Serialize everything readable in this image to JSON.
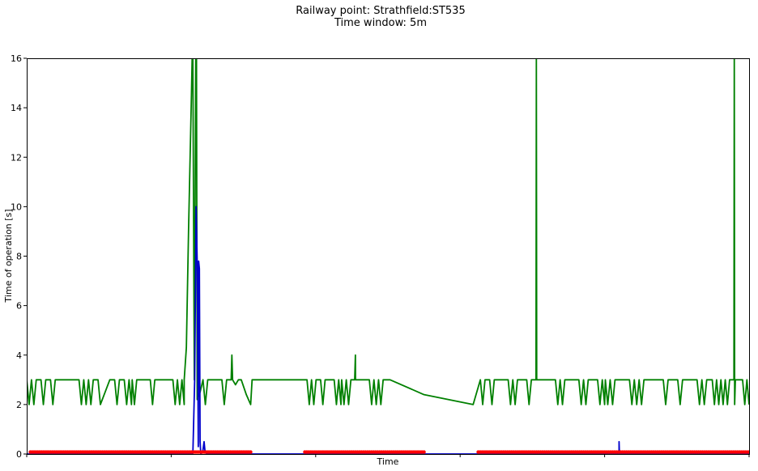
{
  "chart_data": {
    "type": "line",
    "title": "Railway point: Strathfield:ST535",
    "subtitle": "Time window: 5m",
    "xlabel": "Time",
    "ylabel": "Time of operation [s]",
    "ylim": [
      0,
      16
    ],
    "xlim": [
      0,
      100
    ],
    "y_ticks": [
      0,
      2,
      4,
      6,
      8,
      10,
      12,
      14,
      16
    ],
    "x_ticks": [
      0,
      20,
      40,
      60,
      80,
      100
    ],
    "grid": false,
    "legend": "none",
    "series": [
      {
        "color": "#008000",
        "style": "line",
        "segments": [
          {
            "x_start": 0.0,
            "x_end": 10.2,
            "min": 2,
            "max": 3,
            "count": 32
          },
          {
            "x_start": 11.5,
            "x_end": 14.5,
            "min": 2,
            "max": 3,
            "count": 10
          },
          {
            "x_start": 14.6,
            "x_end": 21.8,
            "min": 2,
            "max": 3,
            "count": 24
          },
          {
            "x_start": 24.4,
            "x_end": 28.0,
            "min": 2,
            "max": 3,
            "count": 12
          },
          {
            "x_start": 38.8,
            "x_end": 43.5,
            "min": 2,
            "max": 3,
            "count": 16
          },
          {
            "x_start": 43.6,
            "x_end": 50.3,
            "min": 2,
            "max": 3,
            "count": 22
          },
          {
            "x_start": 62.8,
            "x_end": 70.5,
            "min": 2,
            "max": 3,
            "count": 25
          },
          {
            "x_start": 70.6,
            "x_end": 80.0,
            "min": 2,
            "max": 3,
            "count": 30
          },
          {
            "x_start": 80.1,
            "x_end": 94.8,
            "min": 2,
            "max": 3,
            "count": 45
          },
          {
            "x_start": 94.9,
            "x_end": 100.0,
            "min": 2,
            "max": 3,
            "count": 18
          }
        ],
        "points": [
          [
            21.8,
            3
          ],
          [
            22.1,
            4.3
          ],
          [
            22.4,
            9
          ],
          [
            22.8,
            14.5
          ],
          [
            22.9,
            16
          ],
          [
            23.0,
            16
          ],
          [
            23.2,
            3
          ],
          [
            23.4,
            16
          ],
          [
            23.5,
            16
          ],
          [
            23.6,
            2.2
          ],
          [
            24.0,
            2.5
          ],
          [
            24.4,
            3
          ],
          [
            28.0,
            3
          ],
          [
            28.3,
            3
          ],
          [
            28.4,
            4
          ],
          [
            28.5,
            3
          ],
          [
            28.9,
            2.8
          ],
          [
            29.3,
            3
          ],
          [
            29.7,
            3
          ],
          [
            30.4,
            2.4
          ],
          [
            31.0,
            2
          ],
          [
            31.2,
            3
          ],
          [
            38.8,
            3
          ],
          [
            45.4,
            3
          ],
          [
            45.5,
            4
          ],
          [
            45.6,
            3
          ],
          [
            50.3,
            3
          ],
          [
            55.0,
            2.4
          ],
          [
            61.8,
            2
          ],
          [
            62.8,
            3
          ],
          [
            70.5,
            3
          ],
          [
            70.55,
            16
          ],
          [
            70.6,
            3
          ],
          [
            97.9,
            3
          ],
          [
            97.95,
            16
          ],
          [
            98.0,
            2
          ],
          [
            98.1,
            3
          ]
        ]
      },
      {
        "color": "#0000cc",
        "style": "line",
        "points": [
          [
            0,
            0
          ],
          [
            23.0,
            0
          ],
          [
            23.25,
            3
          ],
          [
            23.45,
            10
          ],
          [
            23.6,
            7.7
          ],
          [
            23.7,
            3
          ],
          [
            23.75,
            0.3
          ],
          [
            23.8,
            7.8
          ],
          [
            23.9,
            7.5
          ],
          [
            24.0,
            0.5
          ],
          [
            24.1,
            0
          ],
          [
            24.4,
            0.15
          ],
          [
            24.55,
            0.5
          ],
          [
            24.7,
            0.05
          ],
          [
            25.0,
            0
          ],
          [
            82.0,
            0
          ],
          [
            82.0,
            0.5
          ],
          [
            82.05,
            0
          ],
          [
            100,
            0
          ]
        ]
      },
      {
        "color": "#ff0000",
        "style": "markers",
        "y": 0.08,
        "segments": [
          {
            "x_start": 0.5,
            "x_end": 31.0,
            "count": 120
          },
          {
            "x_start": 38.5,
            "x_end": 55.0,
            "count": 60
          },
          {
            "x_start": 62.5,
            "x_end": 100.0,
            "count": 140
          }
        ]
      }
    ]
  }
}
